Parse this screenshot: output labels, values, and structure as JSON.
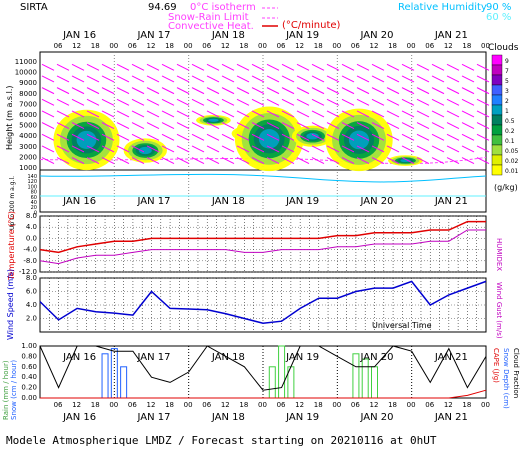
{
  "header": {
    "site": "SIRTA",
    "coords": "94.69",
    "isotherm_label": "0°C isotherm",
    "snow_rain_label": "Snow-Rain Limit",
    "convective_label": "Convective Heat.",
    "convective_unit": "(°C/minute)",
    "rh_label": "Relative Humidity",
    "rh_90": "90 %",
    "rh_60": "60 %"
  },
  "footer": {
    "caption": "Modele Atmospherique LMDZ / Forecast starting on 20210116 at 0hUT",
    "universal_time": "Universal Time"
  },
  "colors": {
    "isotherm": "#ff40ff",
    "convective": "#e00000",
    "rh90": "#00c0ff",
    "rh60": "#60f0ff",
    "wind_barb": "#ff00ff",
    "temperature": "#e00000",
    "humidex": "#c000c0",
    "wind_speed": "#0000d0",
    "rain": "#40d040",
    "snow": "#2060ff",
    "cloud_fraction": "#000000",
    "cape": "#e00000"
  },
  "days": [
    "JAN 16",
    "JAN 17",
    "JAN 18",
    "JAN 19",
    "JAN 20",
    "JAN 21"
  ],
  "hour_ticks": [
    "06",
    "12",
    "18",
    "00"
  ],
  "chart_data": [
    {
      "type": "heatmap",
      "name": "clouds",
      "ylabel": "Height (m a.s.l.)",
      "ylabel_low": "Up to 200 m a.g.l.",
      "yticks": [
        "11000",
        "10000",
        "9000",
        "8000",
        "7000",
        "6000",
        "5000",
        "4000",
        "3000",
        "2000",
        "1000",
        "140",
        "120",
        "100",
        "80",
        "60",
        "40",
        "20",
        "0"
      ],
      "colorbar_title": "Clouds",
      "colorbar_unit": "(g/kg)",
      "colorbar_levels": [
        "9",
        "7",
        "5",
        "3",
        "2",
        "1",
        "0.5",
        "0.2",
        "0.1",
        "0.05",
        "0.02",
        "0.01"
      ],
      "colorbar_colors": [
        "#ff00ff",
        "#c000c0",
        "#8000c0",
        "#4060ff",
        "#2080ff",
        "#00a0c0",
        "#008060",
        "#00a040",
        "#40c040",
        "#a0e040",
        "#e0f000",
        "#ffff00"
      ],
      "cloud_cells": [
        {
          "t": 15,
          "h0": 800,
          "h1": 6500
        },
        {
          "t": 34,
          "h0": 1500,
          "h1": 3800
        },
        {
          "t": 56,
          "h0": 5000,
          "h1": 6000
        },
        {
          "t": 68,
          "h0": 3500,
          "h1": 5000
        },
        {
          "t": 74,
          "h0": 700,
          "h1": 6800
        },
        {
          "t": 88,
          "h0": 3000,
          "h1": 5000
        },
        {
          "t": 103,
          "h0": 700,
          "h1": 6600
        },
        {
          "t": 118,
          "h0": 1200,
          "h1": 2200
        }
      ]
    },
    {
      "type": "line",
      "name": "temperature",
      "ylabel": "Temperature (°C)",
      "ylabel_right": "HUMIDEX",
      "yticks": [
        "8.0",
        "4.0",
        "0.0",
        "-4.0",
        "-8.0",
        "-12.0"
      ],
      "ylim": [
        -12,
        8
      ],
      "x_hours": [
        0,
        6,
        12,
        18,
        24,
        30,
        36,
        42,
        48,
        54,
        60,
        66,
        72,
        78,
        84,
        90,
        96,
        102,
        108,
        114,
        120,
        126,
        132,
        138,
        144
      ],
      "series": [
        {
          "name": "Temperature",
          "values": [
            -4,
            -5,
            -3,
            -2,
            -1,
            -1,
            0,
            0,
            0,
            0,
            0,
            0,
            0,
            0,
            0,
            0,
            1,
            1,
            2,
            2,
            2,
            3,
            3,
            6,
            6
          ]
        },
        {
          "name": "Humidex",
          "values": [
            -8,
            -9,
            -7,
            -6,
            -6,
            -5,
            -4,
            -4,
            -4,
            -4,
            -4,
            -5,
            -5,
            -4,
            -4,
            -4,
            -3,
            -3,
            -2,
            -2,
            -2,
            -1,
            -1,
            3,
            3
          ]
        }
      ]
    },
    {
      "type": "line",
      "name": "wind",
      "ylabel": "Wind Speed (m/s)",
      "ylabel_right": "Wind Gust (m/s)",
      "yticks": [
        "8.0",
        "6.0",
        "4.0",
        "2.0"
      ],
      "ylim": [
        0,
        8
      ],
      "x_hours": [
        0,
        6,
        12,
        18,
        24,
        30,
        36,
        42,
        48,
        54,
        60,
        66,
        72,
        78,
        84,
        90,
        96,
        102,
        108,
        114,
        120,
        126,
        132,
        138,
        144
      ],
      "series": [
        {
          "name": "Wind Speed",
          "values": [
            4.5,
            1.8,
            3.5,
            3.0,
            2.8,
            2.5,
            6.0,
            3.5,
            3.4,
            3.3,
            2.7,
            2.0,
            1.3,
            1.6,
            3.5,
            5.0,
            5.0,
            6.0,
            6.5,
            6.5,
            7.5,
            4.0,
            5.5,
            6.5,
            7.5
          ]
        }
      ]
    },
    {
      "type": "line",
      "name": "precip",
      "ylabel_left_1": "Rain (mm / hour)",
      "ylabel_left_2": "Snow (cm / hour)",
      "ylabel_right_1": "CAPE (J/g)",
      "ylabel_right_2": "Snow Depth (cm)",
      "ylabel_right_3": "Cloud Fraction",
      "yticks": [
        "1.00",
        "0.80",
        "0.60",
        "0.40",
        "0.20",
        "0.00"
      ],
      "ylim": [
        0,
        1
      ],
      "x_hours": [
        0,
        6,
        12,
        18,
        24,
        30,
        36,
        42,
        48,
        54,
        60,
        66,
        72,
        78,
        84,
        90,
        96,
        102,
        108,
        114,
        120,
        126,
        132,
        138,
        144
      ],
      "series": [
        {
          "name": "Cloud Fraction",
          "values": [
            1.0,
            0.2,
            1.0,
            1.0,
            0.9,
            0.9,
            0.4,
            0.3,
            0.5,
            1.0,
            0.8,
            0.6,
            0.15,
            0.2,
            1.0,
            1.0,
            0.8,
            0.6,
            0.6,
            1.0,
            0.9,
            0.3,
            0.95,
            0.2,
            0.8
          ]
        },
        {
          "name": "CAPE",
          "values": [
            0,
            0,
            0,
            0,
            0,
            0,
            0,
            0,
            0,
            0,
            0,
            0,
            0,
            0,
            0,
            0,
            0,
            0,
            0,
            0,
            0,
            0,
            0,
            0.05,
            0.15
          ]
        }
      ],
      "bars": [
        {
          "name": "Snow",
          "hours": [
            21,
            24,
            27
          ],
          "values": [
            0.85,
            0.95,
            0.6
          ]
        },
        {
          "name": "Rain",
          "hours": [
            75,
            78,
            81,
            102,
            105,
            108
          ],
          "values": [
            0.6,
            1.0,
            0.6,
            0.85,
            0.75,
            0.6
          ]
        }
      ]
    }
  ]
}
